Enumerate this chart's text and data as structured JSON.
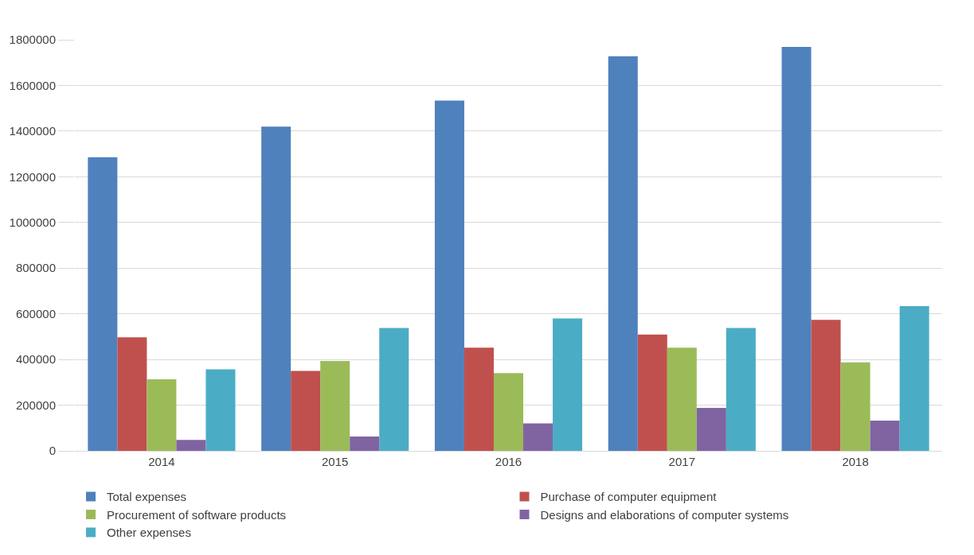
{
  "chart_data": {
    "type": "bar",
    "categories": [
      "2014",
      "2015",
      "2016",
      "2017",
      "2018"
    ],
    "series": [
      {
        "name": "Total expenses",
        "color": "#4f81bd",
        "values": [
          1286000,
          1420000,
          1534000,
          1728000,
          1769000
        ]
      },
      {
        "name": "Purchase of computer equipment",
        "color": "#c0504d",
        "values": [
          497000,
          350000,
          452000,
          509000,
          574000
        ]
      },
      {
        "name": "Procurement of software products",
        "color": "#9bbb59",
        "values": [
          313000,
          393000,
          340000,
          452000,
          387000
        ]
      },
      {
        "name": "Designs and elaborations of computer systems",
        "color": "#8064a2",
        "values": [
          48000,
          63000,
          120000,
          188000,
          132000
        ]
      },
      {
        "name": "Other expenses",
        "color": "#4bacc6",
        "values": [
          357000,
          538000,
          580000,
          538000,
          634000
        ]
      }
    ],
    "ylim": [
      0,
      1800000
    ],
    "yticks": [
      0,
      200000,
      400000,
      600000,
      800000,
      1000000,
      1200000,
      1400000,
      1600000,
      1800000
    ],
    "grid": "y",
    "legend": "bottom"
  }
}
